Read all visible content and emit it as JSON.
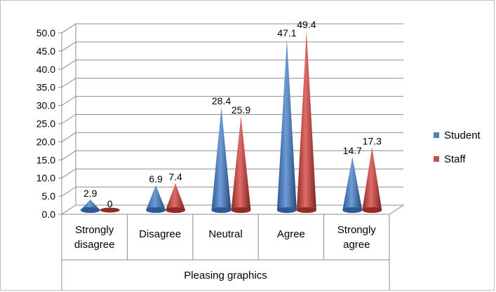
{
  "chart_data": {
    "type": "bar",
    "style": "3d-cone",
    "xlabel": "Pleasing graphics",
    "ylabel": "",
    "ylim": [
      0,
      50
    ],
    "ytick_step": 5,
    "ytick_labels": [
      "0.0",
      "5.0",
      "10.0",
      "15.0",
      "20.0",
      "25.0",
      "30.0",
      "35.0",
      "40.0",
      "45.0",
      "50.0"
    ],
    "grid": true,
    "legend_position": "right",
    "categories": [
      [
        "Strongly",
        "disagree"
      ],
      [
        "Disagree"
      ],
      [
        "Neutral"
      ],
      [
        "Agree"
      ],
      [
        "Strongly",
        "agree"
      ]
    ],
    "series": [
      {
        "name": "Student",
        "color": "#4f81bd",
        "values": [
          2.9,
          6.9,
          28.4,
          47.1,
          14.7
        ]
      },
      {
        "name": "Staff",
        "color": "#c0504d",
        "values": [
          0,
          7.4,
          25.9,
          49.4,
          17.3
        ]
      }
    ],
    "data_labels": [
      [
        "2.9",
        "6.9",
        "28.4",
        "47.1",
        "14.7"
      ],
      [
        "0",
        "7.4",
        "25.9",
        "49.4",
        "17.3"
      ]
    ]
  }
}
